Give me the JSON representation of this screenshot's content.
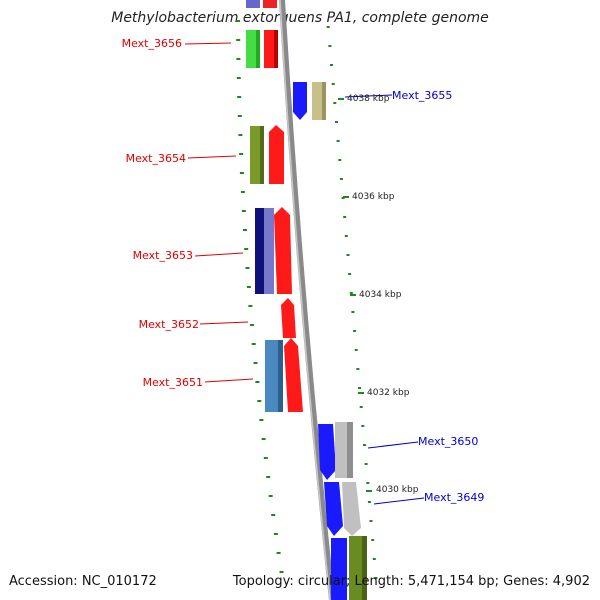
{
  "title": "Methylobacterium extorquens PA1, complete genome",
  "footer": {
    "accession": "Accession: NC_010172",
    "summary": "Topology: circular; Length: 5,471,154 bp; Genes: 4,902"
  },
  "colors": {
    "label_red": "#e00000",
    "label_blue": "#0000cc",
    "backbone": "#8a8a8a",
    "tick_green": "#1a8a1a"
  },
  "ticks": [
    "4038 kbp",
    "4036 kbp",
    "4034 kbp",
    "4032 kbp",
    "4030 kbp"
  ],
  "gene_labels": [
    {
      "text": "Mext_3656",
      "color": "red"
    },
    {
      "text": "Mext_3655",
      "color": "blue"
    },
    {
      "text": "Mext_3654",
      "color": "red"
    },
    {
      "text": "Mext_3653",
      "color": "red"
    },
    {
      "text": "Mext_3652",
      "color": "red"
    },
    {
      "text": "Mext_3651",
      "color": "red"
    },
    {
      "text": "Mext_3650",
      "color": "blue"
    },
    {
      "text": "Mext_3649",
      "color": "blue"
    }
  ]
}
